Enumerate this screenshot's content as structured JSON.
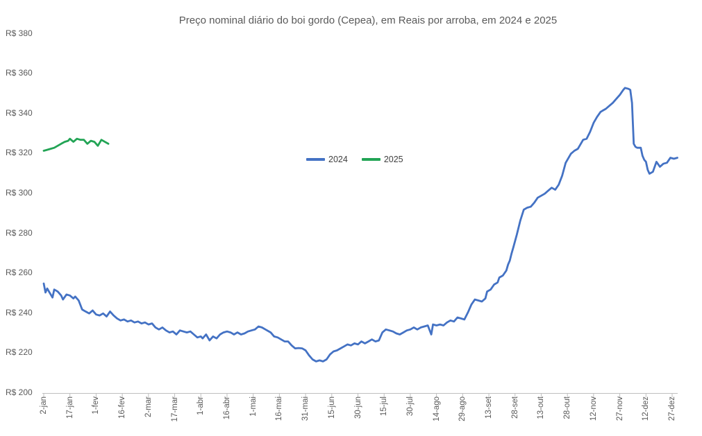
{
  "chart_data": {
    "type": "line",
    "title": "Preço nominal diário do boi gordo (Cepea), em Reais por arroba, em 2024 e 2025",
    "ylabel": "",
    "xlabel": "",
    "ylim": [
      200,
      380
    ],
    "y_tick_step": 20,
    "grid": false,
    "legend_position": "center",
    "y_ticks": [
      {
        "label": "R$ 200",
        "value": 200
      },
      {
        "label": "R$ 220",
        "value": 220
      },
      {
        "label": "R$ 240",
        "value": 240
      },
      {
        "label": "R$ 260",
        "value": 260
      },
      {
        "label": "R$ 280",
        "value": 280
      },
      {
        "label": "R$ 300",
        "value": 300
      },
      {
        "label": "R$ 320",
        "value": 320
      },
      {
        "label": "R$ 340",
        "value": 340
      },
      {
        "label": "R$ 360",
        "value": 360
      },
      {
        "label": "R$ 380",
        "value": 380
      }
    ],
    "x_ticks": [
      {
        "label": "2-jan",
        "day": 0
      },
      {
        "label": "17-jan",
        "day": 15
      },
      {
        "label": "1-fev",
        "day": 30
      },
      {
        "label": "16-fev",
        "day": 45
      },
      {
        "label": "2-mar",
        "day": 60
      },
      {
        "label": "17-mar",
        "day": 75
      },
      {
        "label": "1-abr",
        "day": 90
      },
      {
        "label": "16-abr",
        "day": 105
      },
      {
        "label": "1-mai",
        "day": 120
      },
      {
        "label": "16-mai",
        "day": 135
      },
      {
        "label": "31-mai",
        "day": 150
      },
      {
        "label": "15-jun",
        "day": 165
      },
      {
        "label": "30-jun",
        "day": 180
      },
      {
        "label": "15-jul",
        "day": 195
      },
      {
        "label": "30-jul",
        "day": 210
      },
      {
        "label": "14-ago",
        "day": 225
      },
      {
        "label": "29-ago",
        "day": 240
      },
      {
        "label": "13-set",
        "day": 255
      },
      {
        "label": "28-set",
        "day": 270
      },
      {
        "label": "13-out",
        "day": 285
      },
      {
        "label": "28-out",
        "day": 300
      },
      {
        "label": "12-nov",
        "day": 315
      },
      {
        "label": "27-nov",
        "day": 330
      },
      {
        "label": "12-dez",
        "day": 345
      },
      {
        "label": "27-dez",
        "day": 360
      }
    ],
    "series": [
      {
        "name": "2024",
        "color": "#4472C4",
        "points": [
          [
            0,
            254.5
          ],
          [
            1,
            250
          ],
          [
            2,
            252
          ],
          [
            3,
            250.5
          ],
          [
            5,
            247.5
          ],
          [
            6,
            251.5
          ],
          [
            8,
            250.5
          ],
          [
            9,
            249.5
          ],
          [
            10,
            248.5
          ],
          [
            11,
            246.5
          ],
          [
            13,
            249
          ],
          [
            15,
            248.5
          ],
          [
            17,
            247
          ],
          [
            18,
            248
          ],
          [
            20,
            246
          ],
          [
            22,
            241.5
          ],
          [
            24,
            240.5
          ],
          [
            26,
            239.5
          ],
          [
            28,
            241
          ],
          [
            30,
            239
          ],
          [
            32,
            238.5
          ],
          [
            34,
            239.5
          ],
          [
            36,
            238
          ],
          [
            38,
            240.5
          ],
          [
            40,
            238.5
          ],
          [
            42,
            237
          ],
          [
            44,
            236
          ],
          [
            46,
            236.5
          ],
          [
            48,
            235.5
          ],
          [
            50,
            236
          ],
          [
            52,
            235
          ],
          [
            54,
            235.5
          ],
          [
            56,
            234.5
          ],
          [
            58,
            235
          ],
          [
            60,
            234
          ],
          [
            62,
            234.5
          ],
          [
            64,
            232.5
          ],
          [
            66,
            231.5
          ],
          [
            68,
            232.5
          ],
          [
            70,
            231
          ],
          [
            72,
            230
          ],
          [
            74,
            230.5
          ],
          [
            76,
            229
          ],
          [
            78,
            231
          ],
          [
            80,
            230.5
          ],
          [
            82,
            230
          ],
          [
            84,
            230.5
          ],
          [
            86,
            229
          ],
          [
            88,
            227.5
          ],
          [
            90,
            228
          ],
          [
            91,
            227
          ],
          [
            93,
            229
          ],
          [
            95,
            226
          ],
          [
            97,
            228
          ],
          [
            99,
            227
          ],
          [
            101,
            229
          ],
          [
            103,
            230
          ],
          [
            105,
            230.5
          ],
          [
            107,
            230
          ],
          [
            109,
            229
          ],
          [
            111,
            230
          ],
          [
            113,
            229
          ],
          [
            115,
            229.5
          ],
          [
            117,
            230.5
          ],
          [
            119,
            231
          ],
          [
            121,
            231.5
          ],
          [
            123,
            233
          ],
          [
            125,
            232.5
          ],
          [
            127,
            231.5
          ],
          [
            130,
            230
          ],
          [
            132,
            228
          ],
          [
            134,
            227.5
          ],
          [
            136,
            226.5
          ],
          [
            138,
            225.5
          ],
          [
            140,
            225.5
          ],
          [
            142,
            223.5
          ],
          [
            144,
            222
          ],
          [
            146,
            222.2
          ],
          [
            148,
            222
          ],
          [
            150,
            221
          ],
          [
            152,
            218.5
          ],
          [
            154,
            216.5
          ],
          [
            156,
            215.5
          ],
          [
            158,
            216
          ],
          [
            160,
            215.5
          ],
          [
            162,
            216.5
          ],
          [
            164,
            219
          ],
          [
            166,
            220.5
          ],
          [
            168,
            221
          ],
          [
            170,
            222
          ],
          [
            172,
            223
          ],
          [
            174,
            224
          ],
          [
            176,
            223.5
          ],
          [
            178,
            224.5
          ],
          [
            180,
            224
          ],
          [
            182,
            225.5
          ],
          [
            184,
            224.5
          ],
          [
            186,
            225.5
          ],
          [
            188,
            226.5
          ],
          [
            190,
            225.5
          ],
          [
            192,
            226
          ],
          [
            194,
            230
          ],
          [
            196,
            231.5
          ],
          [
            198,
            231
          ],
          [
            200,
            230.5
          ],
          [
            202,
            229.5
          ],
          [
            204,
            229
          ],
          [
            206,
            230
          ],
          [
            208,
            231
          ],
          [
            210,
            231.5
          ],
          [
            212,
            232.5
          ],
          [
            214,
            231.5
          ],
          [
            216,
            232.5
          ],
          [
            218,
            233
          ],
          [
            220,
            233.5
          ],
          [
            222,
            229
          ],
          [
            223,
            234
          ],
          [
            225,
            233.5
          ],
          [
            227,
            234
          ],
          [
            229,
            233.5
          ],
          [
            231,
            235
          ],
          [
            233,
            236
          ],
          [
            235,
            235.5
          ],
          [
            237,
            237.5
          ],
          [
            239,
            237
          ],
          [
            241,
            236.5
          ],
          [
            243,
            240
          ],
          [
            245,
            244
          ],
          [
            247,
            246.5
          ],
          [
            249,
            246
          ],
          [
            251,
            245.5
          ],
          [
            253,
            247
          ],
          [
            254,
            250.5
          ],
          [
            256,
            251.5
          ],
          [
            258,
            254
          ],
          [
            260,
            255
          ],
          [
            261,
            257.5
          ],
          [
            263,
            258.5
          ],
          [
            265,
            261
          ],
          [
            266,
            264
          ],
          [
            267,
            266
          ],
          [
            268,
            269.5
          ],
          [
            269,
            272.5
          ],
          [
            271,
            279
          ],
          [
            273,
            286
          ],
          [
            275,
            291.5
          ],
          [
            277,
            292.5
          ],
          [
            279,
            293
          ],
          [
            281,
            295
          ],
          [
            283,
            297.5
          ],
          [
            285,
            298.5
          ],
          [
            287,
            299.5
          ],
          [
            289,
            301
          ],
          [
            291,
            302.5
          ],
          [
            293,
            301.5
          ],
          [
            295,
            304
          ],
          [
            297,
            308.5
          ],
          [
            299,
            315
          ],
          [
            302,
            319.5
          ],
          [
            304,
            321
          ],
          [
            306,
            322
          ],
          [
            309,
            326.5
          ],
          [
            311,
            327
          ],
          [
            313,
            330.5
          ],
          [
            315,
            335
          ],
          [
            317,
            338
          ],
          [
            319,
            340.5
          ],
          [
            320,
            341
          ],
          [
            322,
            342
          ],
          [
            324,
            343.5
          ],
          [
            326,
            345
          ],
          [
            328,
            347
          ],
          [
            330,
            349
          ],
          [
            332,
            351.5
          ],
          [
            333,
            352.5
          ],
          [
            335,
            352
          ],
          [
            336,
            351.5
          ],
          [
            337,
            345
          ],
          [
            338,
            324.5
          ],
          [
            339,
            323
          ],
          [
            340,
            322.5
          ],
          [
            342,
            322.5
          ],
          [
            343,
            318.5
          ],
          [
            344,
            316.5
          ],
          [
            345,
            315.5
          ],
          [
            346,
            311.5
          ],
          [
            347,
            309.5
          ],
          [
            349,
            310.5
          ],
          [
            351,
            315.5
          ],
          [
            353,
            313
          ],
          [
            355,
            314.5
          ],
          [
            357,
            315
          ],
          [
            359,
            317.5
          ],
          [
            361,
            317
          ],
          [
            363,
            317.5
          ]
        ]
      },
      {
        "name": "2025",
        "color": "#22A455",
        "points": [
          [
            0,
            321
          ],
          [
            2,
            321.5
          ],
          [
            4,
            322
          ],
          [
            6,
            322.5
          ],
          [
            8,
            323.5
          ],
          [
            10,
            324.5
          ],
          [
            12,
            325.5
          ],
          [
            14,
            326
          ],
          [
            15,
            327
          ],
          [
            17,
            325.5
          ],
          [
            19,
            327
          ],
          [
            21,
            326.5
          ],
          [
            23,
            326.5
          ],
          [
            25,
            324.5
          ],
          [
            27,
            326
          ],
          [
            29,
            325.5
          ],
          [
            31,
            323.5
          ],
          [
            33,
            326.5
          ],
          [
            35,
            325.5
          ],
          [
            37,
            324.5
          ]
        ]
      }
    ]
  },
  "axis_color": "#BFBFBF"
}
